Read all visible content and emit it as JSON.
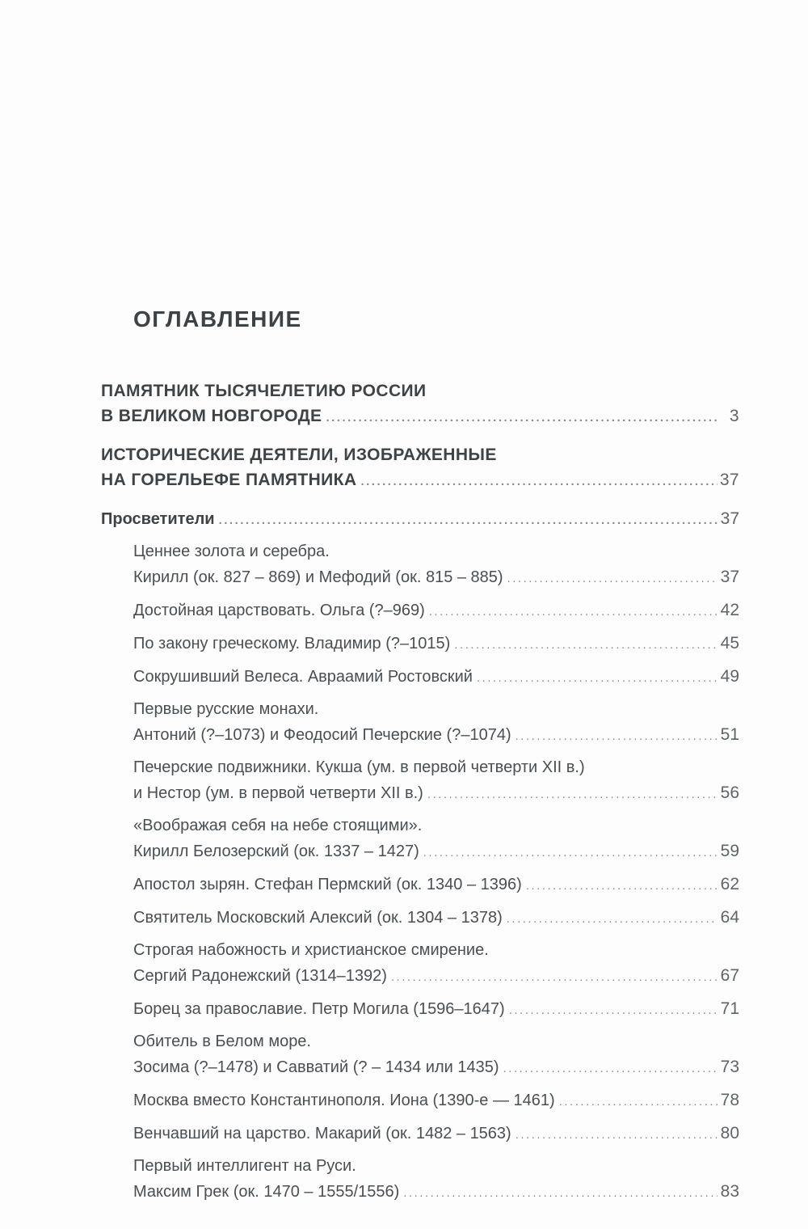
{
  "page": {
    "title": "ОГЛАВЛЕНИЕ"
  },
  "colors": {
    "background": "#fdfdfd",
    "heading_text": "#3d4246",
    "body_text": "#4a4f53",
    "page_number": "#5f6468",
    "dot_leader": "#868b8f"
  },
  "toc": {
    "entries": [
      {
        "style": "header",
        "lines": [
          "ПАМЯТНИК ТЫСЯЧЕЛЕТИЮ РОССИИ"
        ],
        "last": "В ВЕЛИКОМ НОВГОРОДЕ",
        "page": "3"
      },
      {
        "style": "header",
        "lines": [
          "ИСТОРИЧЕСКИЕ ДЕЯТЕЛИ, ИЗОБРАЖЕННЫЕ"
        ],
        "last": "НА ГОРЕЛЬЕФЕ ПАМЯТНИКА",
        "page": "37"
      },
      {
        "style": "subheader",
        "lines": [],
        "last": "Просветители",
        "page": "37"
      },
      {
        "style": "item",
        "lines": [
          "Ценнее золота и серебра."
        ],
        "last": "Кирилл (ок. 827 – 869) и Мефодий (ок. 815 – 885)",
        "page": "37"
      },
      {
        "style": "item",
        "lines": [],
        "last": "Достойная царствовать. Ольга (?–969)",
        "page": "42"
      },
      {
        "style": "item",
        "lines": [],
        "last": "По закону греческому. Владимир (?–1015)",
        "page": "45"
      },
      {
        "style": "item",
        "lines": [],
        "last": "Сокрушивший Велеса. Авраамий Ростовский",
        "page": "49"
      },
      {
        "style": "item",
        "lines": [
          "Первые русские монахи."
        ],
        "last": "Антоний (?–1073) и Феодосий Печерские (?–1074)",
        "page": "51"
      },
      {
        "style": "item",
        "lines": [
          "Печерские подвижники. Кукша (ум. в первой четверти XII в.)"
        ],
        "last": "и Нестор (ум. в первой четверти XII в.)",
        "page": "56"
      },
      {
        "style": "item",
        "lines": [
          "«Воображая себя на небе стоящими»."
        ],
        "last": "Кирилл Белозерский (ок. 1337 – 1427)",
        "page": "59"
      },
      {
        "style": "item",
        "lines": [],
        "last": "Апостол зырян. Стефан Пермский (ок. 1340 – 1396)",
        "page": "62"
      },
      {
        "style": "item",
        "lines": [],
        "last": "Святитель Московский Алексий (ок. 1304 – 1378)",
        "page": "64"
      },
      {
        "style": "item",
        "lines": [
          "Строгая набожность и христианское смирение."
        ],
        "last": "Сергий Радонежский (1314–1392)",
        "page": "67"
      },
      {
        "style": "item",
        "lines": [],
        "last": "Борец за православие. Петр Могила (1596–1647)",
        "page": "71"
      },
      {
        "style": "item",
        "lines": [
          "Обитель в Белом море."
        ],
        "last": "Зосима (?–1478) и Савватий (? – 1434 или 1435)",
        "page": "73"
      },
      {
        "style": "item",
        "lines": [],
        "last": "Москва вместо Константинополя. Иона (1390-е — 1461)",
        "page": "78"
      },
      {
        "style": "item",
        "lines": [],
        "last": "Венчавший на царство. Макарий (ок. 1482 – 1563)",
        "page": "80"
      },
      {
        "style": "item",
        "lines": [
          "Первый интеллигент на Руси."
        ],
        "last": "Максим Грек (ок. 1470 – 1555/1556)",
        "page": "83"
      }
    ]
  }
}
